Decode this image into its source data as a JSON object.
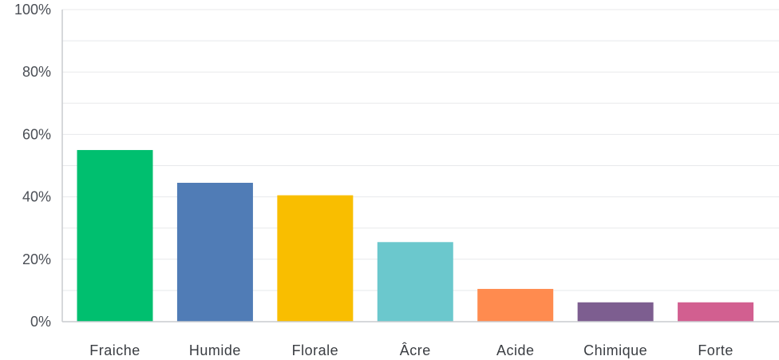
{
  "chart_data": {
    "type": "bar",
    "categories": [
      "Fraiche",
      "Humide",
      "Florale",
      "Âcre",
      "Acide",
      "Chimique",
      "Forte"
    ],
    "values": [
      55,
      44.5,
      40.5,
      25.5,
      10.5,
      6.2,
      6.2
    ],
    "colors": [
      "#00bf6f",
      "#507cb6",
      "#f9be00",
      "#6bc8cd",
      "#ff8b4f",
      "#7d5e90",
      "#d25f90"
    ],
    "ylim": [
      0,
      100
    ],
    "yticks": [
      0,
      20,
      40,
      60,
      80,
      100
    ],
    "ytick_labels": [
      "0%",
      "20%",
      "40%",
      "60%",
      "80%",
      "100%"
    ],
    "grid": true
  }
}
